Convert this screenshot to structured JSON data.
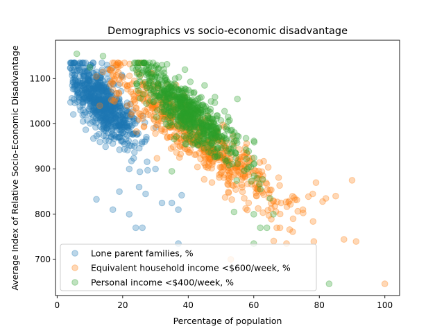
{
  "chart_data": {
    "type": "scatter",
    "title": "Demographics vs socio-economic disadvantage",
    "xlabel": "Percentage of population",
    "ylabel": "Average Index of Relative Socio-Economic Disadvantage",
    "xlim": [
      -0.5,
      104.5
    ],
    "ylim": [
      620,
      1185
    ],
    "xticks": [
      0,
      20,
      40,
      60,
      80,
      100
    ],
    "yticks": [
      700,
      800,
      900,
      1000,
      1100
    ],
    "legend_position": "lower-left",
    "grid": false,
    "marker_alpha": 0.3,
    "series": [
      {
        "name": "Lone parent families, %",
        "color": "#1f77b4",
        "cluster": {
          "x_mean": 14,
          "x_sd": 5,
          "y_at_x_min": 1095,
          "x_min": 6,
          "slope": -6.2,
          "y_noise": 32,
          "count": 700,
          "points": [
            [
              8,
              1110
            ],
            [
              10,
              1125
            ],
            [
              12,
              1115
            ],
            [
              7,
              1095
            ],
            [
              15,
              1060
            ],
            [
              18,
              1020
            ],
            [
              20,
              960
            ],
            [
              22,
              900
            ],
            [
              25,
              860
            ],
            [
              27,
              845
            ],
            [
              30,
              900
            ],
            [
              32,
              825
            ],
            [
              35,
              825
            ],
            [
              37,
              810
            ],
            [
              22,
              800
            ],
            [
              26,
              770
            ],
            [
              24,
              770
            ],
            [
              17,
              810
            ],
            [
              19,
              850
            ],
            [
              12,
              833
            ],
            [
              37,
              735
            ],
            [
              38,
              842
            ]
          ]
        }
      },
      {
        "name": "Equivalent household income <$600/week, %",
        "color": "#ff7f0e",
        "cluster": {
          "x_mean": 42,
          "x_sd": 14,
          "y_at_x_min": 1105,
          "x_min": 18,
          "slope": -5.5,
          "y_noise": 30,
          "count": 650,
          "points": [
            [
              12,
              1105
            ],
            [
              14,
              1115
            ],
            [
              16,
              1120
            ],
            [
              18,
              1130
            ],
            [
              13,
              1040
            ],
            [
              53,
              700
            ],
            [
              100,
              646
            ],
            [
              90,
              875
            ],
            [
              82,
              835
            ],
            [
              81,
              828
            ],
            [
              78,
              845
            ],
            [
              75,
              810
            ],
            [
              72,
              790
            ],
            [
              68,
              770
            ],
            [
              67,
              770
            ],
            [
              70,
              735
            ],
            [
              66,
              830
            ],
            [
              79,
              870
            ],
            [
              85,
              840
            ]
          ]
        }
      },
      {
        "name": "Personal income <$400/week, %",
        "color": "#2ca02c",
        "cluster": {
          "x_mean": 40,
          "x_sd": 8,
          "y_at_x_min": 1115,
          "x_min": 25,
          "slope": -6.0,
          "y_noise": 28,
          "count": 650,
          "points": [
            [
              6,
              1155
            ],
            [
              10,
              1125
            ],
            [
              14,
              1150
            ],
            [
              25,
              1110
            ],
            [
              28,
              1125
            ],
            [
              32,
              1130
            ],
            [
              39,
              1120
            ],
            [
              45,
              1085
            ],
            [
              55,
              1055
            ],
            [
              60,
              800
            ],
            [
              62,
              770
            ],
            [
              64,
              770
            ],
            [
              60,
              735
            ],
            [
              83,
              646
            ],
            [
              66,
              800
            ],
            [
              65,
              835
            ],
            [
              54,
              805
            ],
            [
              58,
              900
            ],
            [
              35,
              895
            ]
          ]
        }
      }
    ]
  }
}
